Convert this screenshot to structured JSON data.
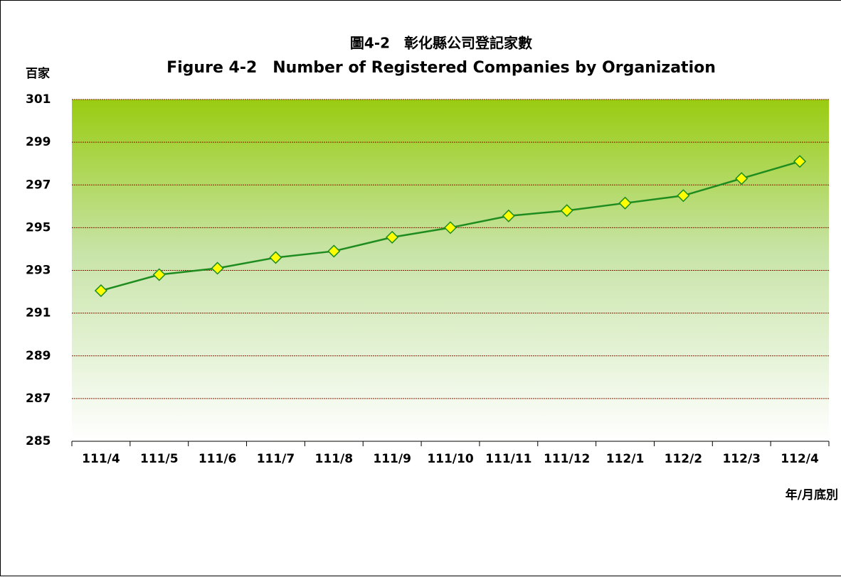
{
  "chart_data": {
    "type": "line",
    "title": "圖4-2　彰化縣公司登記家數",
    "subtitle": "Figure 4-2　Number of Registered Companies by Organization",
    "y_label": "百家",
    "x_label": "年/月底別",
    "categories": [
      "111/4",
      "111/5",
      "111/6",
      "111/7",
      "111/8",
      "111/9",
      "111/10",
      "111/11",
      "111/12",
      "112/1",
      "112/2",
      "112/3",
      "112/4"
    ],
    "series": [
      {
        "name": "公司登記家數",
        "color": "#1e8c1e",
        "values": [
          292.05,
          292.8,
          293.1,
          293.6,
          293.9,
          294.55,
          295.0,
          295.55,
          295.8,
          296.15,
          296.5,
          297.3,
          298.1
        ]
      }
    ],
    "ylim": [
      285,
      301
    ],
    "yticks": [
      285,
      287,
      289,
      291,
      293,
      295,
      297,
      299,
      301
    ],
    "grid": true
  }
}
